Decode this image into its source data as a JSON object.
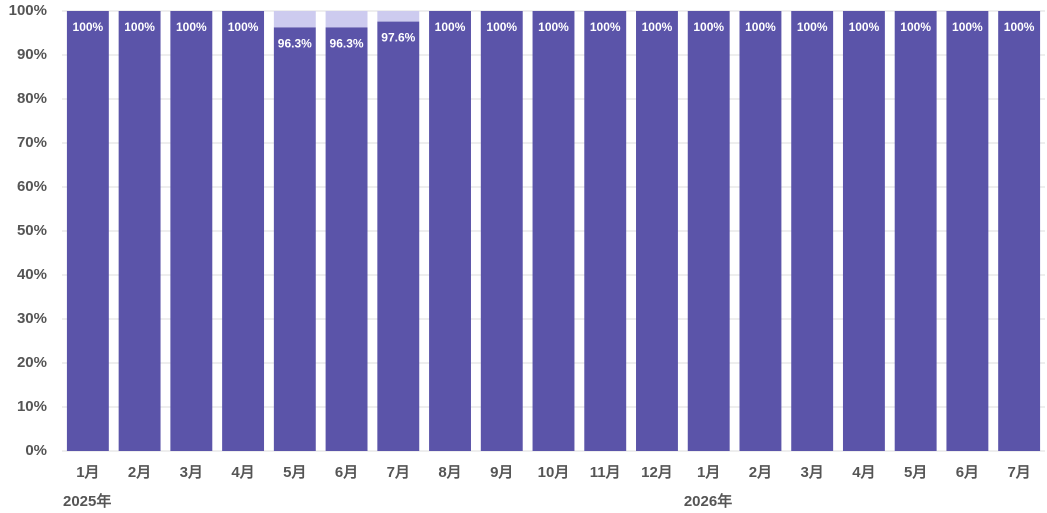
{
  "chart_data": {
    "type": "stacked_bar",
    "categories": [
      "1月",
      "2月",
      "3月",
      "4月",
      "5月",
      "6月",
      "7月",
      "8月",
      "9月",
      "10月",
      "11月",
      "12月",
      "1月",
      "2月",
      "3月",
      "4月",
      "5月",
      "6月",
      "7月"
    ],
    "group_labels": [
      "2025年",
      null,
      null,
      null,
      null,
      null,
      null,
      null,
      null,
      null,
      null,
      null,
      "2026年",
      null,
      null,
      null,
      null,
      null,
      null
    ],
    "series": [
      {
        "color": "#5b54a9",
        "values": [
          100,
          100,
          100,
          100,
          96.3,
          96.3,
          97.6,
          100,
          100,
          100,
          100,
          100,
          100,
          100,
          100,
          100,
          100,
          100,
          100
        ],
        "value_labels": [
          "100%",
          "100%",
          "100%",
          "100%",
          "96.3%",
          "96.3%",
          "97.6%",
          "100%",
          "100%",
          "100%",
          "100%",
          "100%",
          "100%",
          "100%",
          "100%",
          "100%",
          "100%",
          "100%",
          "100%"
        ]
      },
      {
        "color": "#cdcbef",
        "values": [
          0,
          0,
          0,
          0,
          3.7,
          3.7,
          2.4,
          0,
          0,
          0,
          0,
          0,
          0,
          0,
          0,
          0,
          0,
          0,
          0
        ]
      }
    ],
    "ylim": [
      0,
      100
    ],
    "yticks": [
      {
        "value": 0,
        "label": "0%"
      },
      {
        "value": 10,
        "label": "10%"
      },
      {
        "value": 20,
        "label": "20%"
      },
      {
        "value": 30,
        "label": "30%"
      },
      {
        "value": 40,
        "label": "40%"
      },
      {
        "value": 50,
        "label": "50%"
      },
      {
        "value": 60,
        "label": "60%"
      },
      {
        "value": 70,
        "label": "70%"
      },
      {
        "value": 80,
        "label": "80%"
      },
      {
        "value": 90,
        "label": "90%"
      },
      {
        "value": 100,
        "label": "100%"
      }
    ],
    "grid": true
  }
}
